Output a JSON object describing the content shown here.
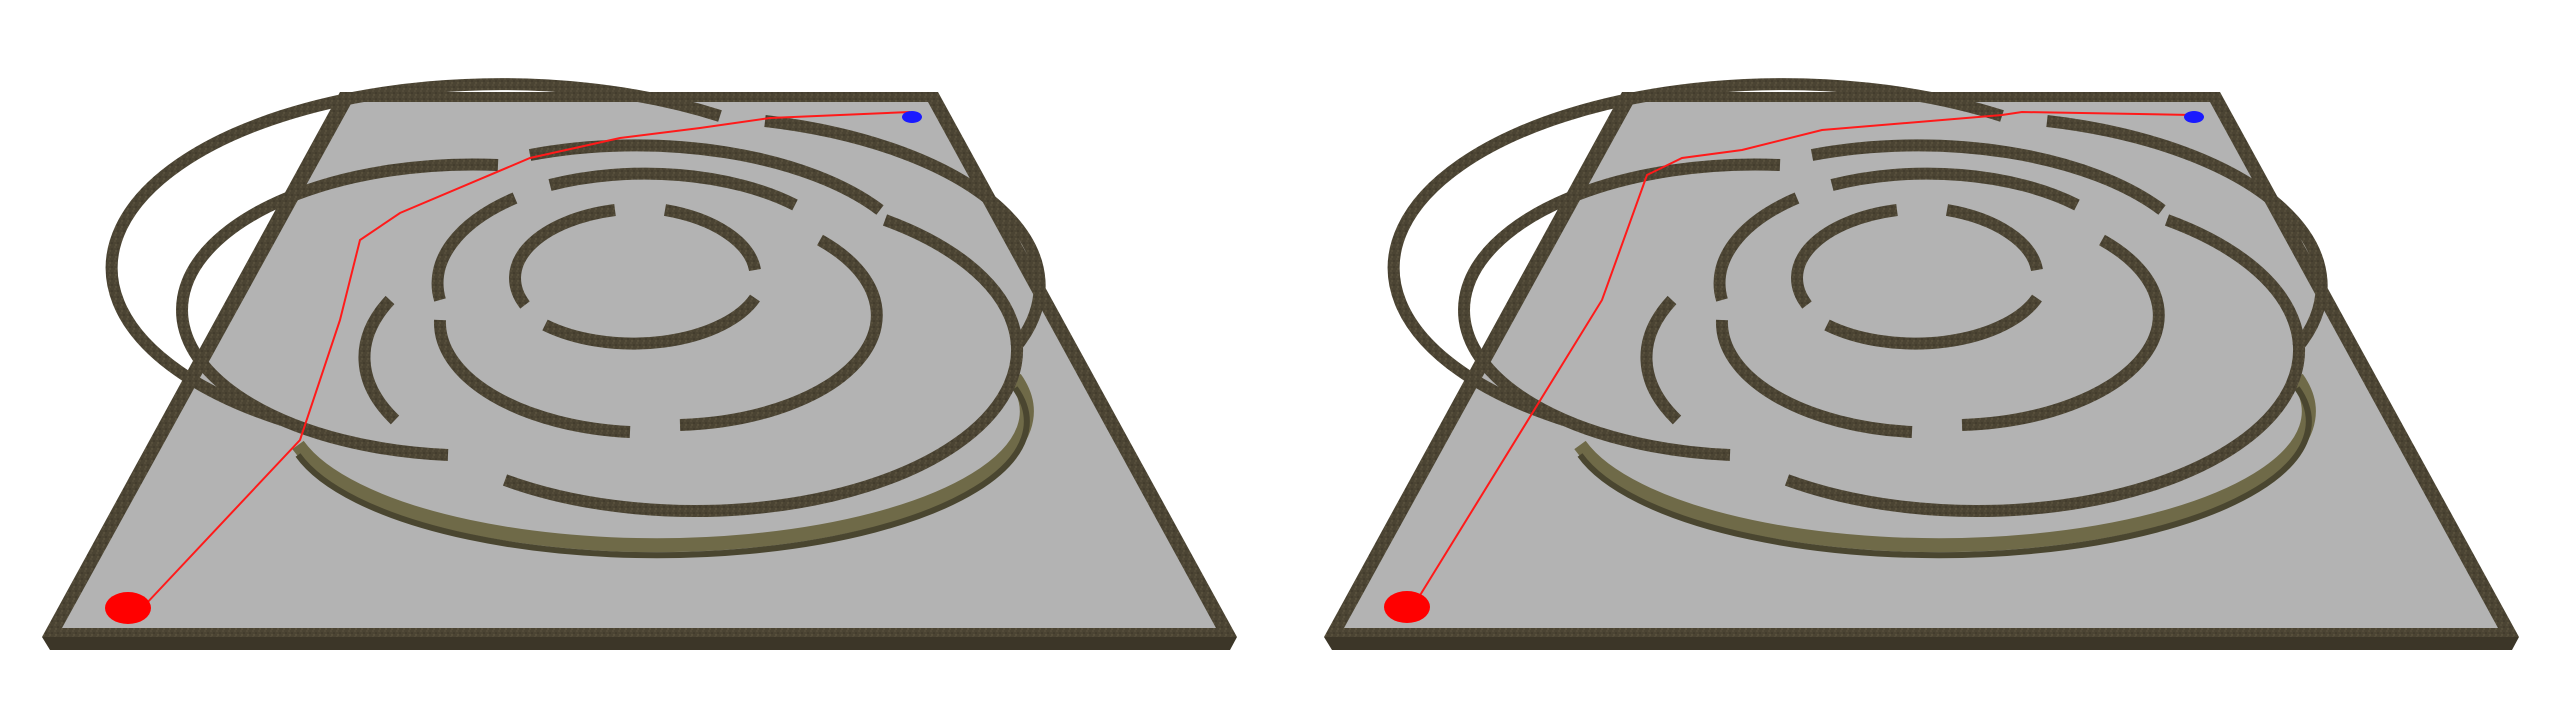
{
  "scene": {
    "panel_count": 2,
    "colors": {
      "background": "#ffffff",
      "floor": "#b3b3b3",
      "wall_top": "#4b4433",
      "wall_side": "#3c3628",
      "wall_highlight": "#6f6a48",
      "path": "#ff1a1a",
      "start_marker": "#ff0000",
      "goal_marker": "#1a1aff"
    }
  },
  "panels": [
    {
      "id": "left",
      "path_shape": "winding path through maze rings",
      "start_marker": "red",
      "goal_marker": "blue"
    },
    {
      "id": "right",
      "path_shape": "shortcut path along outer edge",
      "start_marker": "red",
      "goal_marker": "blue"
    }
  ]
}
